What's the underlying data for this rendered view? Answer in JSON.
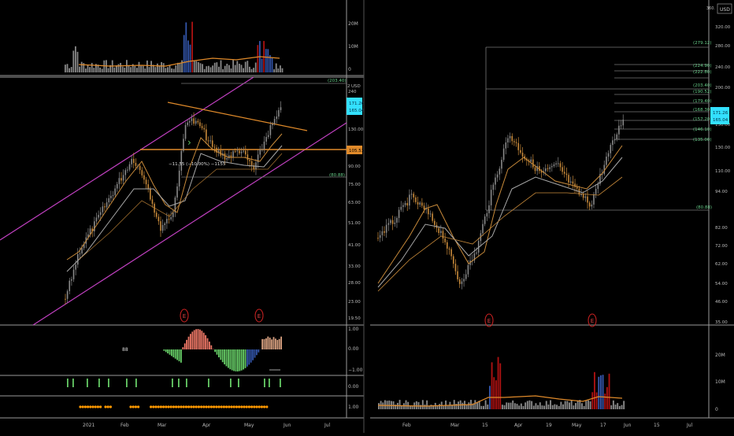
{
  "colors": {
    "background": "#000000",
    "grid": "#9a9a9a",
    "up": "#8a8a8a",
    "down": "#c88a3a",
    "orange_line": "#e08a2a",
    "purple_line": "#c040c0",
    "cyan_tag": "#33e0ff",
    "green_bar": "#66cc66",
    "red_bar": "#ee7766",
    "volume_gray": "#888888",
    "volume_red": "#aa1111",
    "volume_blue": "#3355aa",
    "axis_text": "#bbbbbb",
    "dot_orange": "#ff9900"
  },
  "left": {
    "volume_axis": [
      "20M",
      "10M",
      "0"
    ],
    "price_axis": [
      "240",
      "203.40",
      "160",
      "130.00",
      "105.53",
      "90.00",
      "75.00",
      "63.00",
      "51.00",
      "41.00",
      "33.00",
      "28.00",
      "23.00",
      "19.50"
    ],
    "price_unit": "USD",
    "price_axis_top_label": "2",
    "tags": {
      "high": "(203.40)",
      "current_top": "171.26",
      "current_bottom": "165.04",
      "level": "105.53",
      "low": "(80.88)"
    },
    "measure_label": "−11.55 (−10.00%) −1155",
    "earnings_marker": "E",
    "oscillator_axis": [
      "1.00",
      "0.00",
      "−1.00"
    ],
    "dots_label": "88",
    "signal_axis": [
      "0.00"
    ],
    "dots_axis": [
      "1.00"
    ],
    "time_axis": [
      "2021",
      "Feb",
      "Mar",
      "Apr",
      "May",
      "Jun",
      "Jul"
    ]
  },
  "right": {
    "price_unit": "USD",
    "price_axis_top": "360.",
    "price_axis": [
      "320.00",
      "280.00",
      "240.00",
      "200.00",
      "150.00",
      "130.00",
      "110.00",
      "94.00",
      "82.00",
      "72.00",
      "62.00",
      "54.00",
      "46.00",
      "35.00"
    ],
    "fib_tags": [
      "(279.12)",
      "(224.90)",
      "(222.80)",
      "(203.40)",
      "(190.52)",
      "(179.40)",
      "(168.30)",
      "(157.20)",
      "(146.10)",
      "(135.00)"
    ],
    "current_tags": {
      "top": "171.26",
      "bottom": "165.04"
    },
    "low_tag": "(80.88)",
    "earnings_marker": "E",
    "volume_axis": [
      "20M",
      "10M",
      "0"
    ],
    "time_axis": [
      "Feb",
      "Mar",
      "15",
      "Apr",
      "19",
      "May",
      "17",
      "Jun",
      "15",
      "Jul"
    ]
  }
}
